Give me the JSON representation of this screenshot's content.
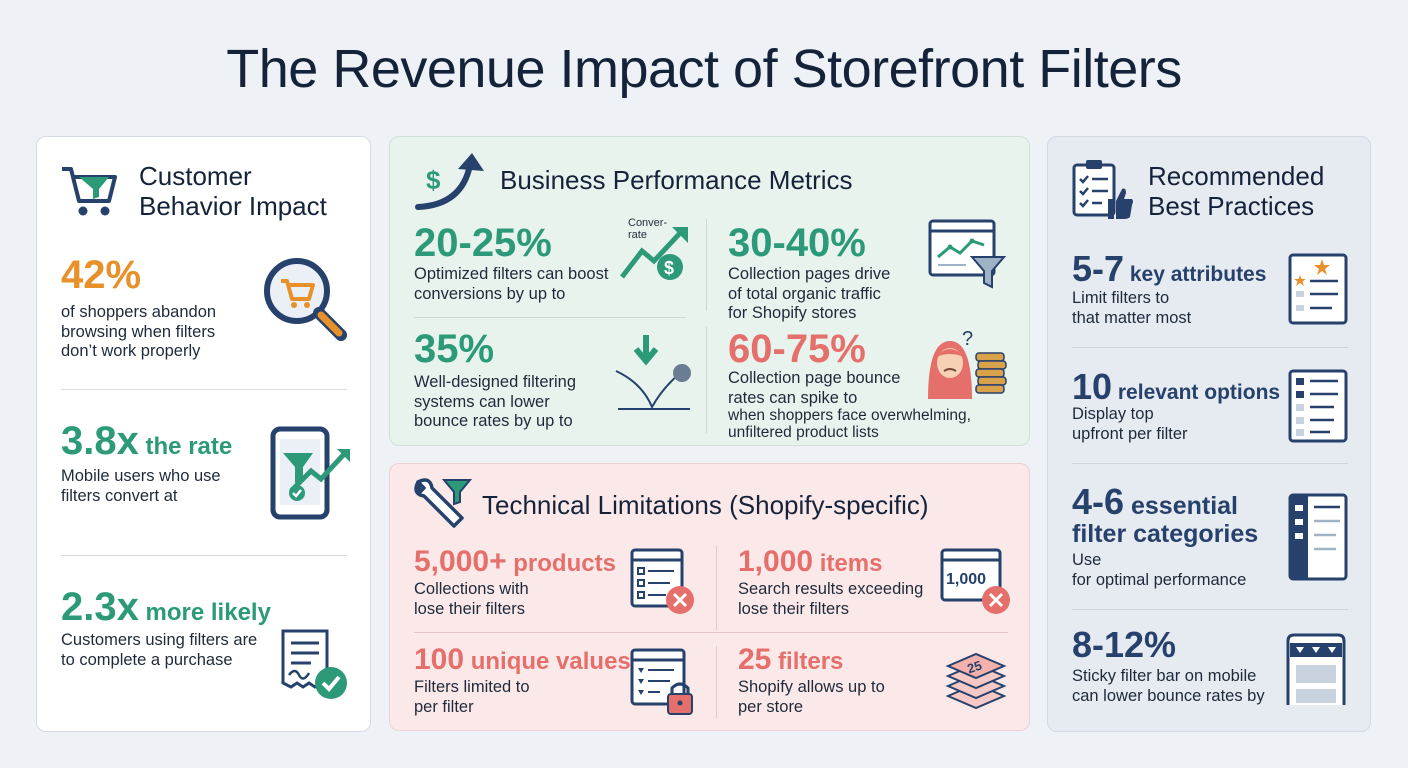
{
  "title": "The Revenue Impact of Storefront Filters",
  "customer": {
    "heading_line1": "Customer",
    "heading_line2": "Behavior Impact",
    "stats": [
      {
        "value": "42%",
        "unit": "",
        "desc": "of shoppers abandon\nbrowsing when filters\ndon’t work properly",
        "icon": "search-cart-icon"
      },
      {
        "value": "3.8x",
        "unit": " the rate",
        "desc": "Mobile users who use\nfilters convert at",
        "icon": "mobile-filter-growth-icon"
      },
      {
        "value": "2.3x",
        "unit": " more likely",
        "desc": "Customers using filters are\nto complete a purchase",
        "icon": "receipt-check-icon"
      }
    ]
  },
  "business": {
    "heading": "Business Performance Metrics",
    "icon_label": "$",
    "metrics": [
      {
        "value": "20-25%",
        "desc": "Optimized filters can boost\nconversions by up to",
        "icon": "conversion-growth-icon",
        "icon_text": "Conver-\nrate",
        "icon_symbol": "$"
      },
      {
        "value": "30-40%",
        "desc": "Collection pages drive\nof total organic traffic\nfor Shopify stores",
        "icon": "browser-chart-funnel-icon"
      },
      {
        "value": "35%",
        "desc": "Well-designed filtering\nsystems can lower\nbounce rates by up to",
        "icon": "bounce-down-icon"
      },
      {
        "value": "60-75%",
        "desc": "Collection page bounce\nrates can spike to",
        "desc_small": "when shoppers face overwhelming,\nunfiltered product lists",
        "icon": "overwhelmed-shopper-icon",
        "icon_symbol": "?"
      }
    ]
  },
  "technical": {
    "heading": "Technical Limitations (Shopify-specific)",
    "limits": [
      {
        "value": "5,000+",
        "unit": " products",
        "desc": "Collections with\nlose their filters",
        "icon": "list-error-icon"
      },
      {
        "value": "1,000",
        "unit": " items",
        "desc": "Search results exceeding\nlose their filters",
        "icon": "search-results-error-icon",
        "icon_text": "1,000"
      },
      {
        "value": "100",
        "unit": " unique values",
        "desc": "Filters limited to\nper filter",
        "icon": "filter-lock-icon"
      },
      {
        "value": "25",
        "unit": " filters",
        "desc": "Shopify allows up to\nper store",
        "icon": "filter-stack-icon",
        "icon_text": "25"
      }
    ]
  },
  "practices": {
    "heading_line1": "Recommended",
    "heading_line2": "Best Practices",
    "items": [
      {
        "value": "5-7",
        "unit": " key attributes",
        "desc": "Limit filters to\nthat matter most",
        "icon": "starred-list-icon"
      },
      {
        "value": "10",
        "unit": " relevant options",
        "desc": "Display top\nupfront per filter",
        "icon": "checklist-panel-icon"
      },
      {
        "value": "4-6",
        "unit": " essential",
        "unit2": "filter categories",
        "desc": "Use\nfor optimal performance",
        "icon": "sidebar-panel-icon"
      },
      {
        "value": "8-12%",
        "unit": "",
        "desc": "Sticky filter bar on mobile\ncan lower bounce rates by",
        "icon": "sticky-filter-bar-icon"
      }
    ]
  },
  "colors": {
    "orange": "#e8902a",
    "green": "#2c9a78",
    "coral": "#e56f6b",
    "navy": "#26416b"
  }
}
